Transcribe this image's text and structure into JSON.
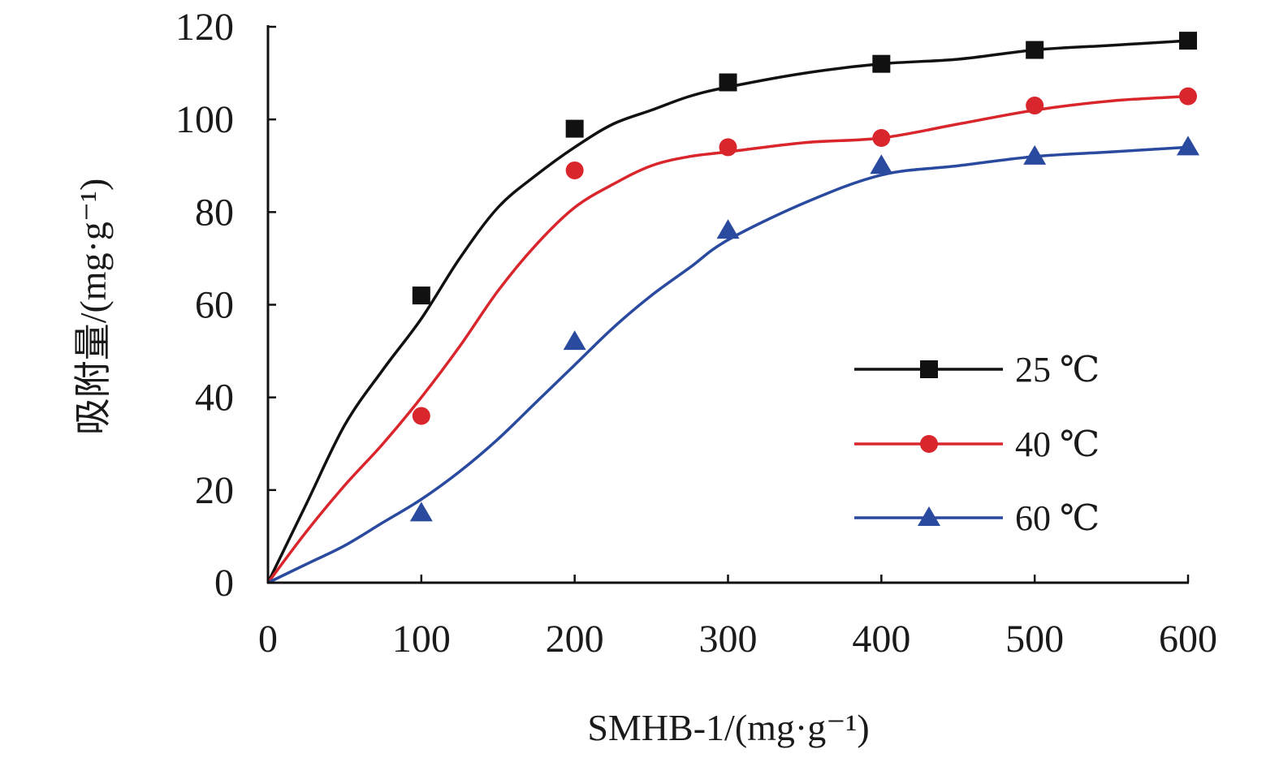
{
  "chart_data": {
    "type": "line",
    "title": "",
    "xlabel": "SMHB-1/(mg·g⁻¹)",
    "ylabel": "吸附量/(mg·g⁻¹)",
    "xlim": [
      0,
      600
    ],
    "ylim": [
      0,
      120
    ],
    "x_ticks": [
      0,
      100,
      200,
      300,
      400,
      500,
      600
    ],
    "y_ticks": [
      0,
      20,
      40,
      60,
      80,
      100,
      120
    ],
    "x_tick_labels": [
      "0",
      "100",
      "200",
      "300",
      "400",
      "500",
      "600"
    ],
    "y_tick_labels": [
      "0",
      "20",
      "40",
      "60",
      "80",
      "100",
      "120"
    ],
    "grid": false,
    "legend_position": "right",
    "series": [
      {
        "name": "25 ℃",
        "color": "#111111",
        "marker": "square",
        "points_x": [
          100,
          200,
          300,
          400,
          500,
          600
        ],
        "points_y": [
          62,
          98,
          108,
          112,
          115,
          117
        ],
        "fit_x": [
          0,
          25,
          50,
          75,
          100,
          125,
          150,
          175,
          200,
          225,
          250,
          275,
          300,
          350,
          400,
          450,
          500,
          550,
          600
        ],
        "fit_y": [
          0,
          17,
          34,
          46,
          57,
          70,
          81,
          88,
          94,
          99,
          102,
          105,
          107,
          110,
          112,
          113,
          115,
          116,
          117
        ]
      },
      {
        "name": "40 ℃",
        "color": "#d9262c",
        "marker": "circle",
        "points_x": [
          100,
          200,
          300,
          400,
          500,
          600
        ],
        "points_y": [
          36,
          89,
          94,
          96,
          103,
          105
        ],
        "fit_x": [
          0,
          25,
          50,
          75,
          100,
          125,
          150,
          175,
          200,
          225,
          250,
          275,
          300,
          350,
          400,
          450,
          500,
          550,
          600
        ],
        "fit_y": [
          0,
          11,
          21,
          30,
          40,
          51,
          63,
          73,
          81,
          86,
          90,
          92,
          93,
          95,
          96,
          99,
          102,
          104,
          105
        ]
      },
      {
        "name": "60 ℃",
        "color": "#2a4aa0",
        "marker": "triangle",
        "points_x": [
          100,
          200,
          300,
          400,
          500,
          600
        ],
        "points_y": [
          15,
          52,
          76,
          90,
          92,
          94
        ],
        "fit_x": [
          0,
          25,
          50,
          75,
          100,
          125,
          150,
          175,
          200,
          225,
          250,
          275,
          300,
          350,
          400,
          450,
          500,
          550,
          600
        ],
        "fit_y": [
          0,
          4,
          8,
          13,
          18,
          24,
          31,
          39,
          47,
          55,
          62,
          68,
          74,
          82,
          88,
          90,
          92,
          93,
          94
        ]
      }
    ]
  }
}
